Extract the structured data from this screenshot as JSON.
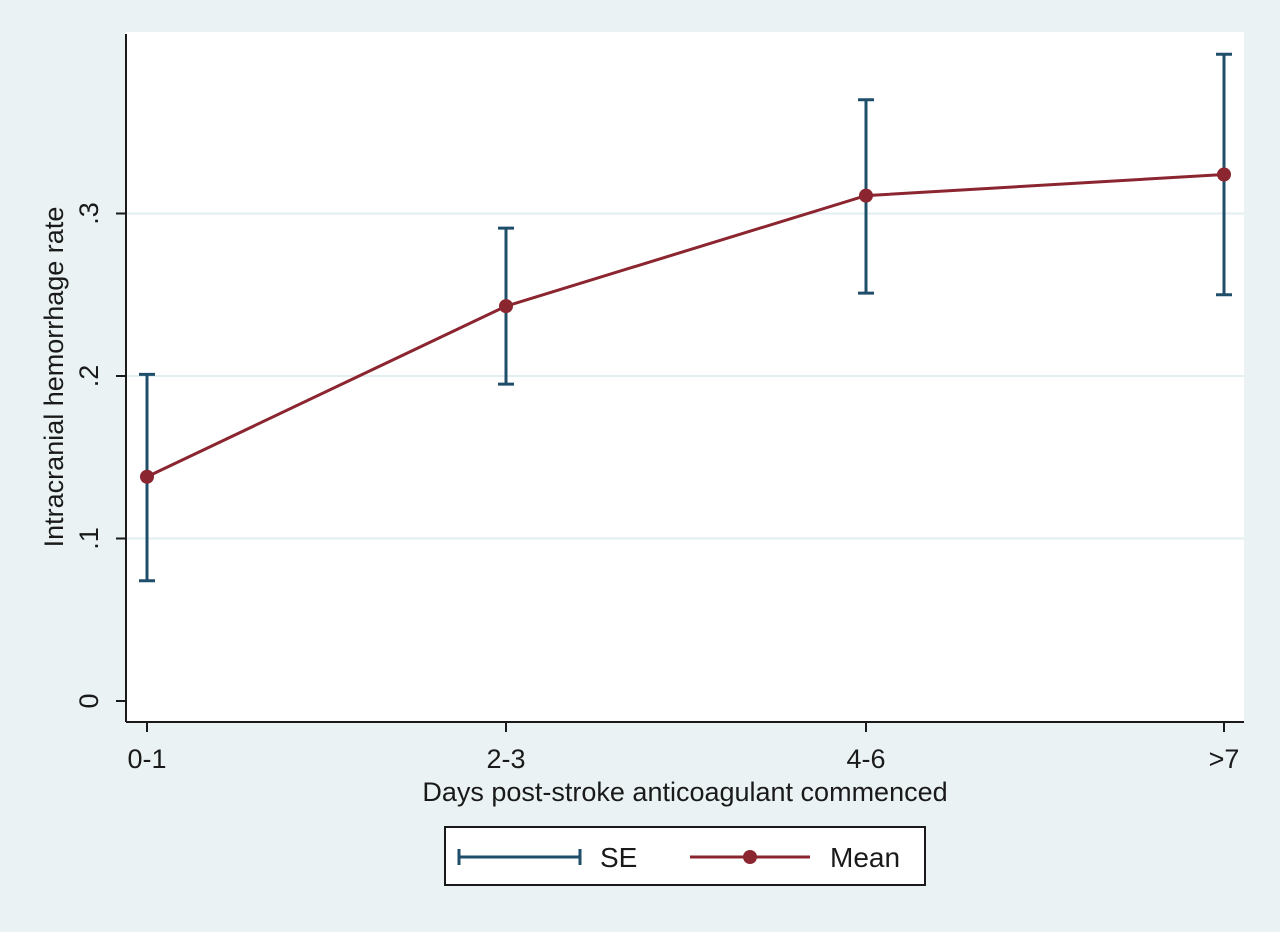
{
  "chart_data": {
    "type": "line",
    "categories": [
      "0-1",
      "2-3",
      "4-6",
      ">7"
    ],
    "series": [
      {
        "name": "Mean",
        "values": [
          0.138,
          0.243,
          0.311,
          0.324
        ]
      },
      {
        "name": "SE",
        "upper": [
          0.201,
          0.291,
          0.37,
          0.398
        ],
        "lower": [
          0.074,
          0.195,
          0.251,
          0.25
        ]
      }
    ],
    "xlabel": "Days post-stroke anticoagulant commenced",
    "ylabel": "Intracranial hemorrhage rate",
    "ylim": [
      0,
      0.4
    ],
    "yticks": [
      0,
      0.1,
      0.2,
      0.3
    ],
    "ytick_labels": [
      "0",
      ".1",
      ".2",
      ".3"
    ],
    "grid": true,
    "legend": {
      "placement": "bottom-center",
      "entries": [
        {
          "label": "SE",
          "color": "#1f4e6b"
        },
        {
          "label": "Mean",
          "color": "#8b2530"
        }
      ]
    },
    "colors": {
      "background": "#eaf2f3",
      "plot_background": "#ffffff",
      "grid": "#e3eef0",
      "se": "#1f4e6b",
      "mean": "#8b2530"
    }
  }
}
